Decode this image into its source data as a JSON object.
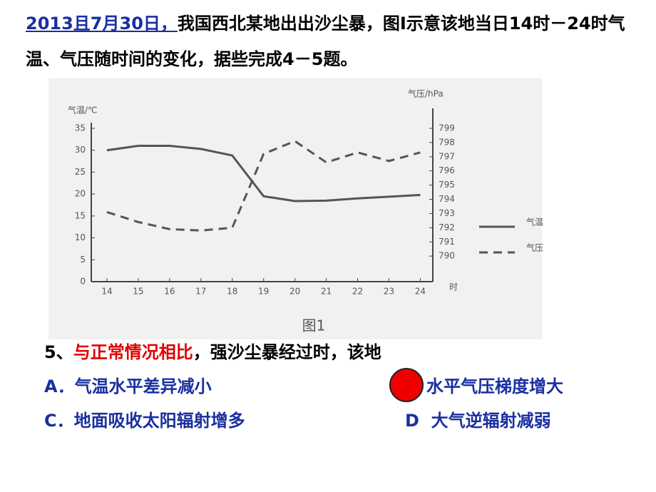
{
  "header": {
    "date": "2013且7月30日，",
    "text": "我国西北某地出出沙尘暴，图Ⅰ示意该地当日14时－24时气温、气压随时间的变化，据些完成4－5题。"
  },
  "chart_data": {
    "type": "line",
    "title": "图1",
    "x": [
      14,
      15,
      16,
      17,
      18,
      19,
      20,
      21,
      22,
      23,
      24
    ],
    "xlim": [
      13.5,
      24.4
    ],
    "xticks": [
      14,
      15,
      16,
      17,
      18,
      19,
      20,
      21,
      22,
      23,
      24
    ],
    "x_label": "时",
    "y_label": "气温/℃",
    "ylim": [
      0,
      36.3
    ],
    "yticks": [
      0,
      5,
      10,
      15,
      20,
      25,
      30,
      35
    ],
    "y2_label": "气压/hPa",
    "y2lim": [
      788.2,
      799.4
    ],
    "y2ticks": [
      790,
      791,
      792,
      793,
      794,
      795,
      796,
      797,
      798,
      799
    ],
    "series": [
      {
        "name": "气温",
        "color": "#555555",
        "dash": false,
        "values": [
          30,
          31,
          31,
          30.3,
          28.8,
          19.5,
          18.4,
          18.5,
          19,
          19.4,
          19.8
        ]
      },
      {
        "name": "气压",
        "color": "#555555",
        "dash": true,
        "axis": "y2",
        "values": [
          793.1,
          792.4,
          791.9,
          791.8,
          792,
          797.2,
          798.1,
          796.6,
          797.3,
          796.7,
          797.3
        ]
      }
    ]
  },
  "question": {
    "number": "5、",
    "highlight": "与正常情况相比",
    "stem": "，强沙尘暴经过时，该地"
  },
  "options": [
    "A．气温水平差异减小",
    "水平气压梯度增大",
    "C．地面吸收太阳辐射增多",
    "D  大气逆辐射减弱"
  ]
}
